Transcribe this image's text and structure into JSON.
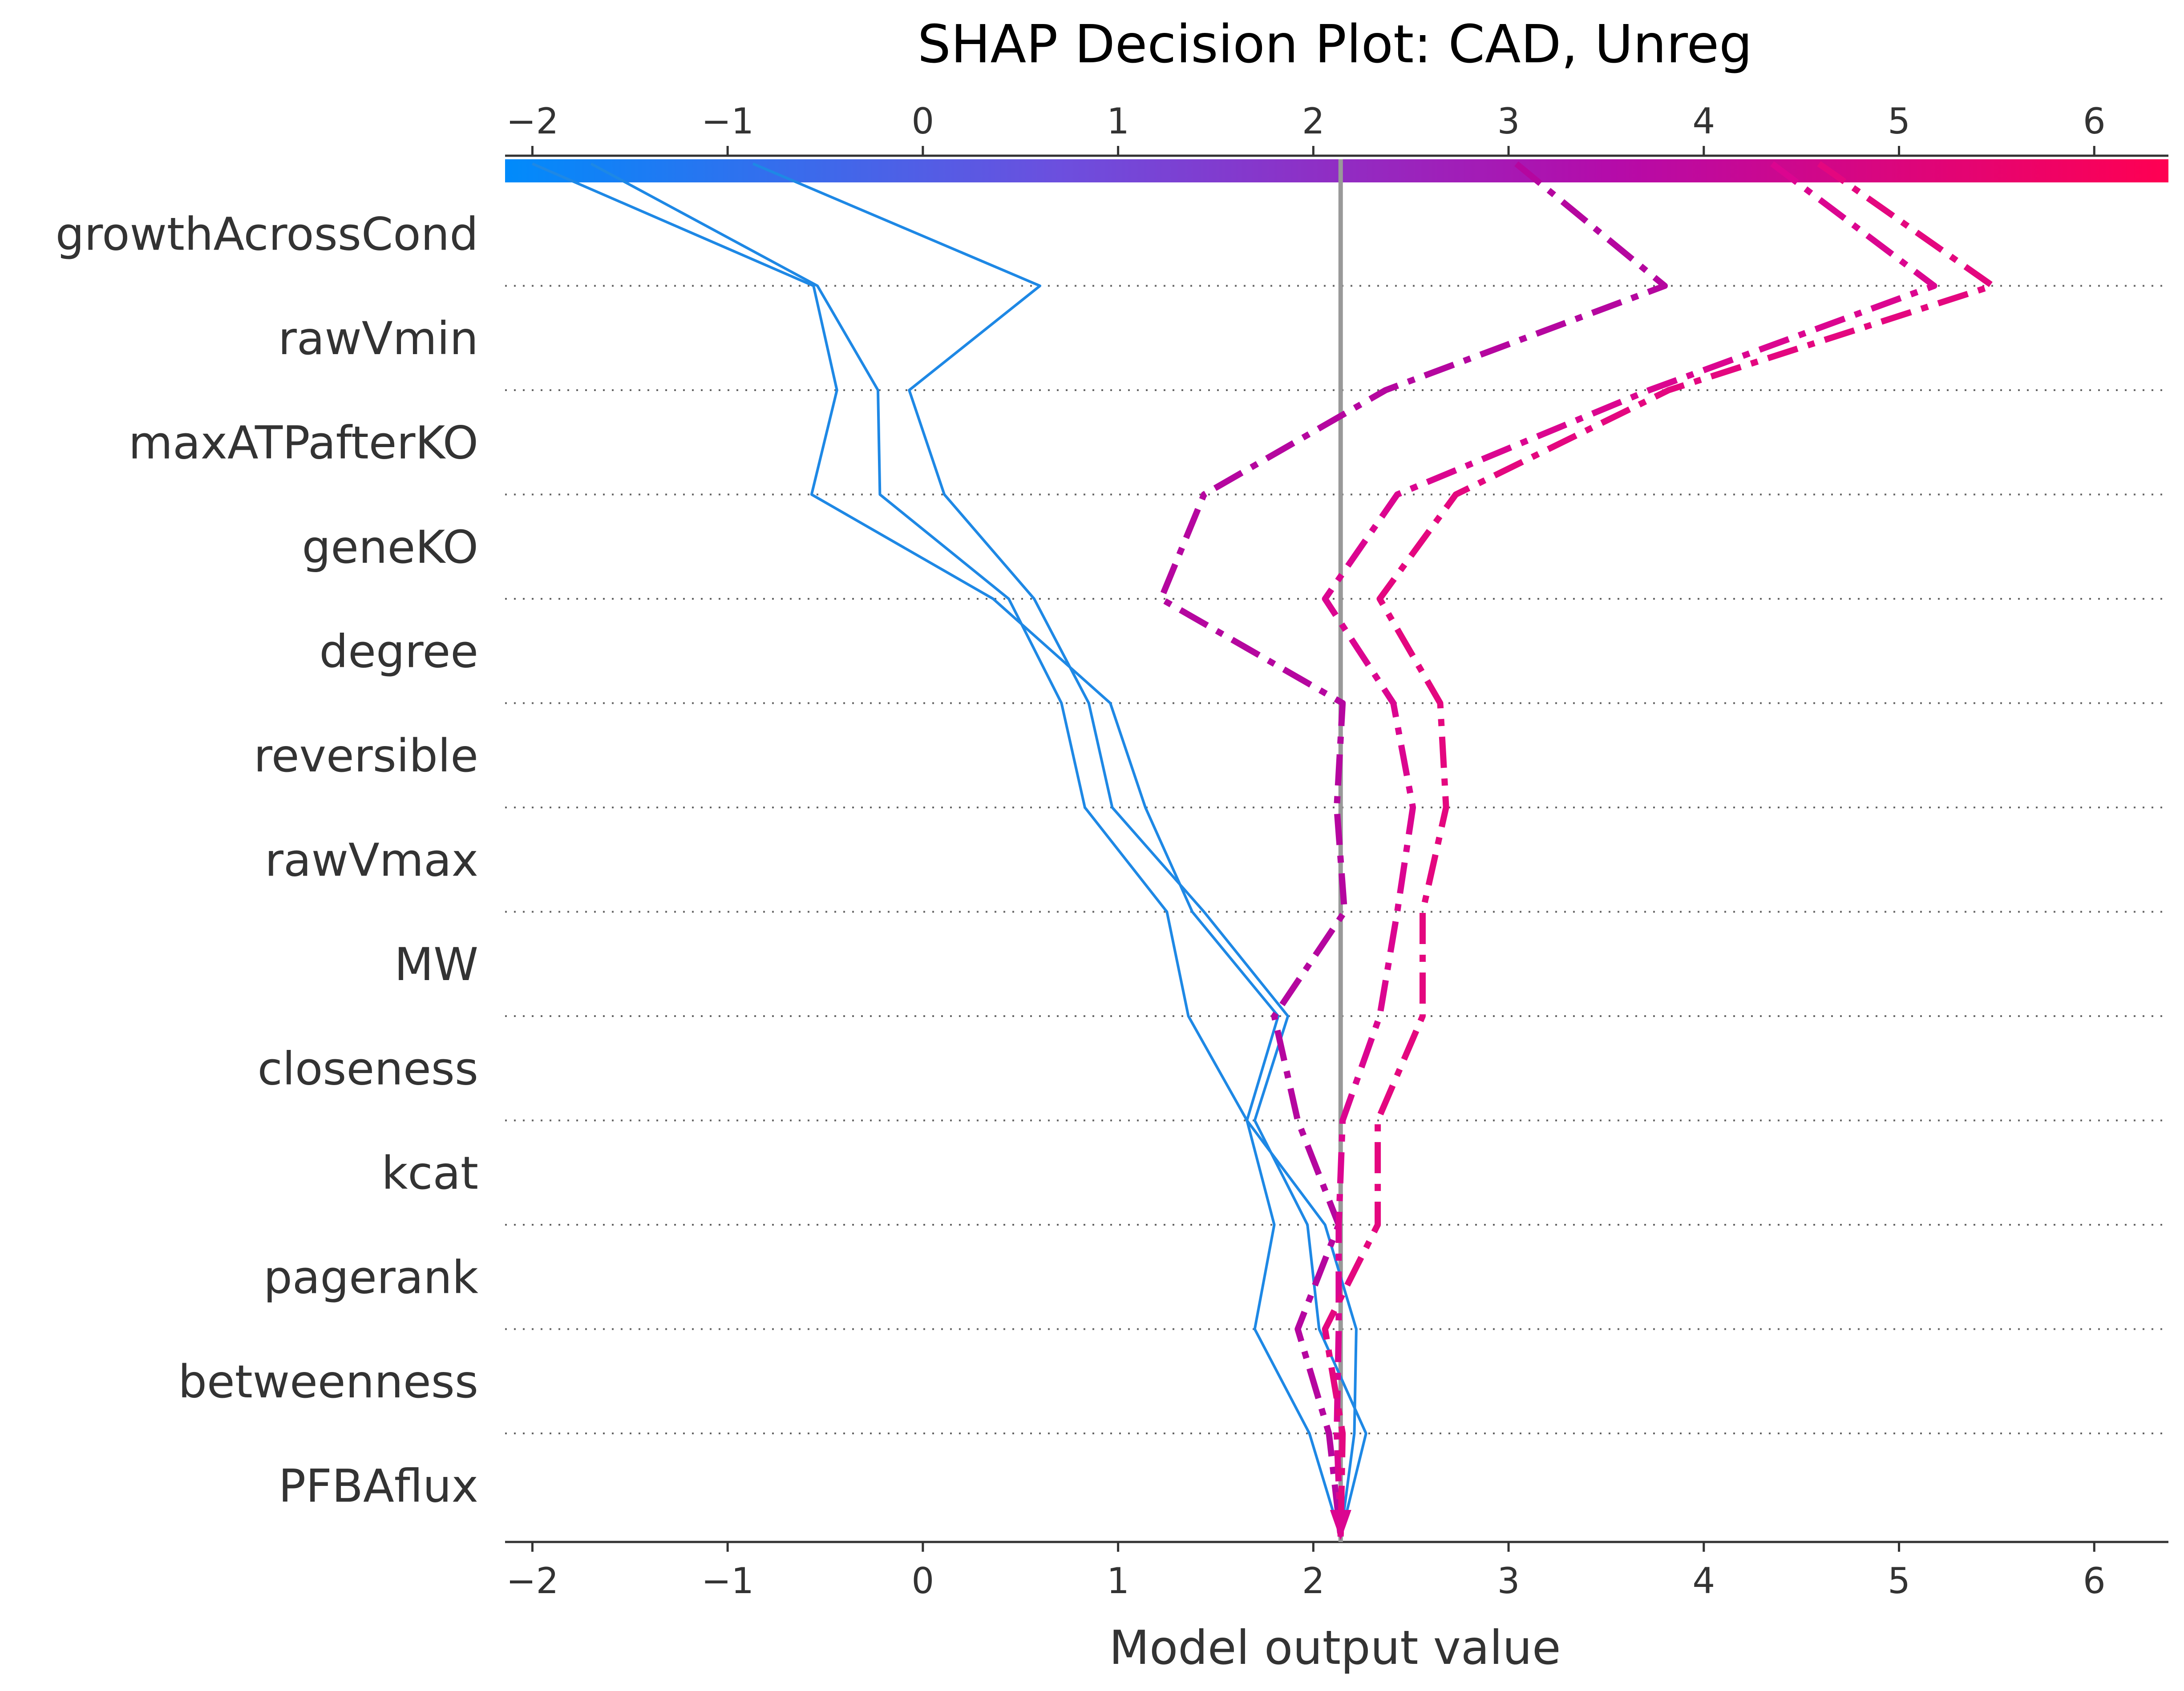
{
  "chart_data": {
    "type": "line",
    "subtype": "shap-decision-plot",
    "title": "SHAP Decision Plot: CAD, Unreg",
    "xlabel": "Model output value",
    "ylabel": "",
    "xlim": [
      -2.14,
      6.38
    ],
    "x_ticks": [
      -2,
      -1,
      0,
      1,
      2,
      3,
      4,
      5,
      6
    ],
    "x_tick_labels": [
      "−2",
      "−1",
      "0",
      "1",
      "2",
      "3",
      "4",
      "5",
      "6"
    ],
    "base_value": 2.14,
    "features": [
      "growthAcrossCond",
      "rawVmin",
      "maxATPafterKO",
      "geneKO",
      "degree",
      "reversible",
      "rawVmax",
      "MW",
      "closeness",
      "kcat",
      "pagerank",
      "betweenness",
      "PFBAflux"
    ],
    "grid": "dotted horizontal lines between features",
    "colorbar": {
      "position": "top",
      "colors": [
        "#008bfb",
        "#6c4fde",
        "#b50ba9",
        "#ff0052"
      ]
    },
    "series": [
      {
        "style": "solid",
        "color": "#1E88E5",
        "values": [
          -2.0,
          -0.56,
          -0.44,
          -0.57,
          0.36,
          0.96,
          1.14,
          1.38,
          1.82,
          1.66,
          2.06,
          2.22,
          2.21,
          2.14
        ]
      },
      {
        "style": "solid",
        "color": "#1E88E5",
        "values": [
          -1.7,
          -0.54,
          -0.23,
          -0.22,
          0.44,
          0.71,
          0.83,
          1.25,
          1.36,
          1.66,
          1.8,
          1.7,
          1.98,
          2.14
        ]
      },
      {
        "style": "solid",
        "color": "#1E88E5",
        "values": [
          -0.87,
          0.6,
          -0.07,
          0.11,
          0.57,
          0.85,
          0.97,
          1.44,
          1.87,
          1.7,
          1.97,
          2.03,
          2.27,
          2.14
        ]
      },
      {
        "style": "dashdot",
        "color": "#B5069F",
        "values": [
          3.04,
          3.8,
          2.37,
          1.44,
          1.22,
          2.15,
          2.12,
          2.16,
          1.8,
          1.92,
          2.13,
          1.92,
          2.08,
          2.14
        ]
      },
      {
        "style": "dashdot",
        "color": "#DB0590",
        "values": [
          4.35,
          5.18,
          3.72,
          2.43,
          2.06,
          2.41,
          2.51,
          2.43,
          2.34,
          2.15,
          2.13,
          2.13,
          2.12,
          2.14
        ]
      },
      {
        "style": "dashdot",
        "color": "#E4077F",
        "values": [
          4.59,
          5.48,
          3.82,
          2.73,
          2.34,
          2.65,
          2.68,
          2.56,
          2.56,
          2.33,
          2.33,
          2.06,
          2.15,
          2.14
        ]
      }
    ]
  }
}
